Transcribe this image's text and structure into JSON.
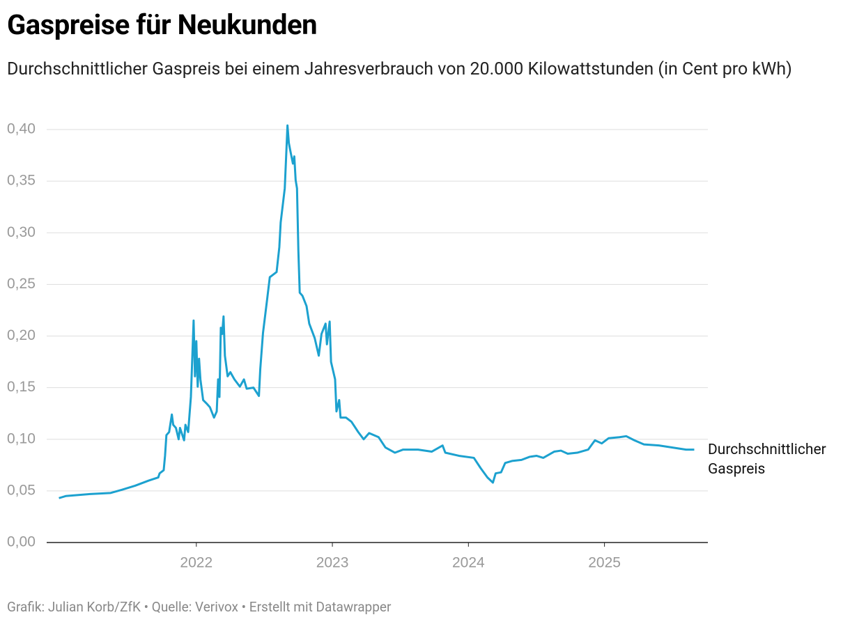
{
  "chart_data": {
    "type": "line",
    "title": "Gaspreise für Neukunden",
    "subtitle": "Durchschnittlicher Gaspreis bei einem Jahresverbrauch von 20.000 Kilowattstunden (in Cent pro kWh)",
    "source": "Grafik: Julian Korb/ZfK • Quelle: Verivox • Erstellt mit Datawrapper",
    "x": [
      2020.99,
      2021.04,
      2021.22,
      2021.37,
      2021.45,
      2021.55,
      2021.65,
      2021.72,
      2021.73,
      2021.76,
      2021.77,
      2021.78,
      2021.8,
      2021.82,
      2021.83,
      2021.85,
      2021.87,
      2021.88,
      2021.91,
      2021.92,
      2021.94,
      2021.96,
      2021.98,
      2021.99,
      2022.0,
      2022.01,
      2022.02,
      2022.03,
      2022.05,
      2022.08,
      2022.1,
      2022.13,
      2022.15,
      2022.16,
      2022.17,
      2022.18,
      2022.19,
      2022.2,
      2022.21,
      2022.23,
      2022.25,
      2022.28,
      2022.32,
      2022.35,
      2022.37,
      2022.42,
      2022.46,
      2022.47,
      2022.49,
      2022.52,
      2022.54,
      2022.56,
      2022.59,
      2022.61,
      2022.62,
      2022.65,
      2022.67,
      2022.68,
      2022.69,
      2022.71,
      2022.72,
      2022.73,
      2022.74,
      2022.75,
      2022.76,
      2022.78,
      2022.81,
      2022.83,
      2022.87,
      2022.9,
      2022.92,
      2022.95,
      2022.96,
      2022.98,
      2022.99,
      2023.02,
      2023.03,
      2023.05,
      2023.06,
      2023.1,
      2023.14,
      2023.19,
      2023.23,
      2023.27,
      2023.34,
      2023.39,
      2023.46,
      2023.52,
      2023.63,
      2023.73,
      2023.81,
      2023.83,
      2023.93,
      2024.04,
      2024.09,
      2024.14,
      2024.18,
      2024.2,
      2024.24,
      2024.27,
      2024.32,
      2024.39,
      2024.45,
      2024.5,
      2024.55,
      2024.63,
      2024.68,
      2024.73,
      2024.8,
      2024.88,
      2024.93,
      2024.98,
      2025.03,
      2025.11,
      2025.16,
      2025.22,
      2025.29,
      2025.4,
      2025.5,
      2025.6,
      2025.66
    ],
    "series": [
      {
        "name": "Durchschnittlicher Gaspreis",
        "color": "#1ca1cf",
        "values": [
          0.043,
          0.045,
          0.047,
          0.048,
          0.051,
          0.055,
          0.06,
          0.063,
          0.067,
          0.07,
          0.084,
          0.104,
          0.107,
          0.124,
          0.114,
          0.111,
          0.1,
          0.111,
          0.099,
          0.114,
          0.107,
          0.141,
          0.215,
          0.161,
          0.195,
          0.151,
          0.178,
          0.158,
          0.138,
          0.134,
          0.131,
          0.121,
          0.127,
          0.158,
          0.141,
          0.208,
          0.202,
          0.219,
          0.181,
          0.161,
          0.165,
          0.158,
          0.151,
          0.158,
          0.149,
          0.15,
          0.142,
          0.168,
          0.203,
          0.235,
          0.257,
          0.259,
          0.262,
          0.286,
          0.31,
          0.343,
          0.404,
          0.387,
          0.38,
          0.367,
          0.374,
          0.351,
          0.343,
          0.283,
          0.242,
          0.239,
          0.229,
          0.212,
          0.198,
          0.181,
          0.202,
          0.212,
          0.192,
          0.214,
          0.175,
          0.158,
          0.127,
          0.138,
          0.121,
          0.121,
          0.117,
          0.107,
          0.1,
          0.106,
          0.102,
          0.092,
          0.087,
          0.09,
          0.09,
          0.088,
          0.094,
          0.087,
          0.084,
          0.082,
          0.072,
          0.063,
          0.058,
          0.067,
          0.068,
          0.077,
          0.079,
          0.08,
          0.083,
          0.084,
          0.082,
          0.088,
          0.089,
          0.086,
          0.087,
          0.09,
          0.099,
          0.096,
          0.101,
          0.102,
          0.103,
          0.099,
          0.095,
          0.094,
          0.092,
          0.09,
          0.09
        ]
      }
    ],
    "xlim": [
      2020.9,
      2025.76
    ],
    "xticks": [
      2022,
      2023,
      2024,
      2025
    ],
    "ylim": [
      0,
      0.4
    ],
    "yticks": [
      {
        "value": 0,
        "label": "0,00"
      },
      {
        "value": 0.05,
        "label": "0,05"
      },
      {
        "value": 0.1,
        "label": "0,10"
      },
      {
        "value": 0.15,
        "label": "0,15"
      },
      {
        "value": 0.2,
        "label": "0,20"
      },
      {
        "value": 0.25,
        "label": "0,25"
      },
      {
        "value": 0.3,
        "label": "0,30"
      },
      {
        "value": 0.35,
        "label": "0,35"
      },
      {
        "value": 0.4,
        "label": "0,40"
      }
    ],
    "grid": true
  }
}
